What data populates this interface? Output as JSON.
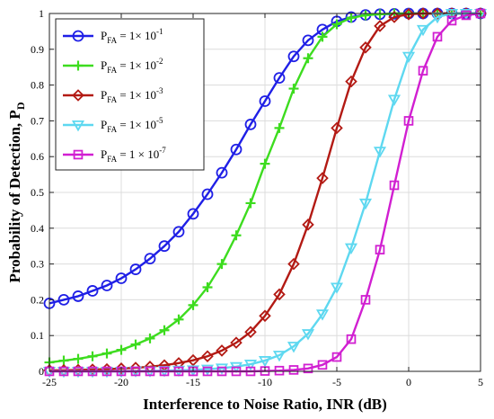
{
  "chart_data": {
    "type": "line",
    "xlabel": "Interference to Noise Ratio, INR (dB)",
    "ylabel": "Probability of Detection, P",
    "ylabel_sub": "D",
    "xlim": [
      -25,
      5
    ],
    "ylim": [
      0,
      1
    ],
    "xticks": [
      "-25",
      "-20",
      "-15",
      "-10",
      "-5",
      "0",
      "5"
    ],
    "yticks": [
      "0",
      "0.1",
      "0.2",
      "0.3",
      "0.4",
      "0.5",
      "0.6",
      "0.7",
      "0.8",
      "0.9",
      "1"
    ],
    "grid": true,
    "legend_position": "top-left",
    "x": [
      -25,
      -24,
      -23,
      -22,
      -21,
      -20,
      -19,
      -18,
      -17,
      -16,
      -15,
      -14,
      -13,
      -12,
      -11,
      -10,
      -9,
      -8,
      -7,
      -6,
      -5,
      -4,
      -3,
      -2,
      -1,
      0,
      1,
      2,
      3,
      4,
      5
    ],
    "series": [
      {
        "name_parts": [
          "P",
          "FA",
          " = 1× 10",
          "-1"
        ],
        "color": "#1f1fe6",
        "marker": "circle",
        "values": [
          0.19,
          0.2,
          0.21,
          0.225,
          0.24,
          0.26,
          0.285,
          0.315,
          0.35,
          0.39,
          0.44,
          0.495,
          0.555,
          0.62,
          0.69,
          0.755,
          0.82,
          0.88,
          0.925,
          0.955,
          0.978,
          0.99,
          0.996,
          0.998,
          0.999,
          1.0,
          1.0,
          1.0,
          1.0,
          1.0,
          1.0
        ]
      },
      {
        "name_parts": [
          "P",
          "FA",
          " = 1× 10",
          "-2"
        ],
        "color": "#3ddc1f",
        "marker": "plus",
        "values": [
          0.025,
          0.03,
          0.035,
          0.042,
          0.05,
          0.06,
          0.075,
          0.092,
          0.115,
          0.145,
          0.185,
          0.235,
          0.3,
          0.38,
          0.47,
          0.58,
          0.68,
          0.79,
          0.875,
          0.935,
          0.97,
          0.988,
          0.995,
          0.998,
          1.0,
          1.0,
          1.0,
          1.0,
          1.0,
          1.0,
          1.0
        ]
      },
      {
        "name_parts": [
          "P",
          "FA",
          " = 1× 10",
          "-3"
        ],
        "color": "#b31a14",
        "marker": "diamond",
        "values": [
          0.003,
          0.003,
          0.004,
          0.005,
          0.006,
          0.008,
          0.01,
          0.013,
          0.017,
          0.023,
          0.031,
          0.042,
          0.058,
          0.08,
          0.11,
          0.155,
          0.215,
          0.3,
          0.41,
          0.54,
          0.68,
          0.81,
          0.905,
          0.965,
          0.99,
          0.998,
          1.0,
          1.0,
          1.0,
          1.0,
          1.0
        ]
      },
      {
        "name_parts": [
          "P",
          "FA",
          " = 1× 10",
          "-5"
        ],
        "color": "#5ed8f0",
        "marker": "triangle-down",
        "values": [
          0.0,
          0.0,
          0.0,
          0.0,
          0.0,
          0.0,
          0.001,
          0.001,
          0.002,
          0.003,
          0.004,
          0.006,
          0.009,
          0.013,
          0.02,
          0.03,
          0.045,
          0.07,
          0.105,
          0.16,
          0.235,
          0.345,
          0.47,
          0.615,
          0.76,
          0.88,
          0.955,
          0.99,
          1.0,
          1.0,
          1.0
        ]
      },
      {
        "name_parts": [
          "P",
          "FA",
          " = 1 × 10",
          "-7"
        ],
        "color": "#d11fd1",
        "marker": "square",
        "values": [
          0.0,
          0.0,
          0.0,
          0.0,
          0.0,
          0.0,
          0.0,
          0.0,
          0.0,
          0.0,
          0.0,
          0.0,
          0.0,
          0.0,
          0.0,
          0.001,
          0.002,
          0.004,
          0.008,
          0.018,
          0.04,
          0.09,
          0.2,
          0.34,
          0.52,
          0.7,
          0.84,
          0.935,
          0.98,
          0.995,
          1.0
        ]
      }
    ]
  }
}
